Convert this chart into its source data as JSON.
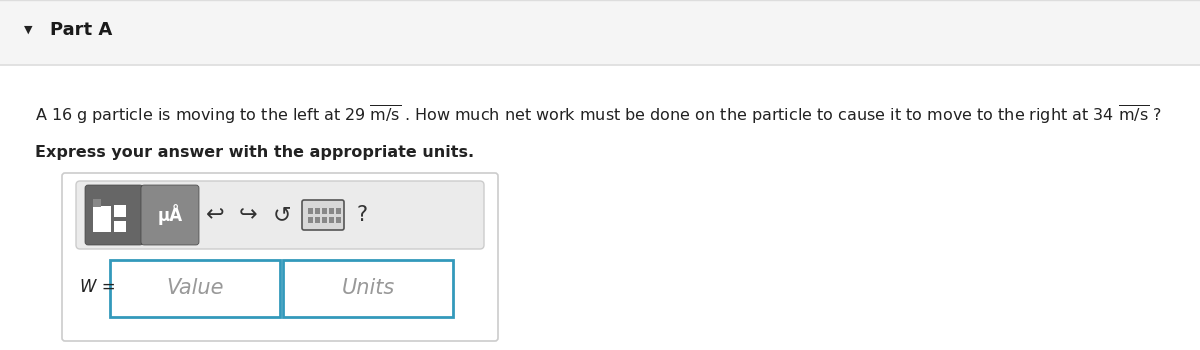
{
  "white_bg": "#ffffff",
  "header_bg": "#f5f5f5",
  "header_border": "#dddddd",
  "header_text": "Part A",
  "header_arrow": "▼",
  "question_line": "A 16 g particle is moving to the left at 29$\\overline{\\rm m/s}$ . How much net work must be done on the particle to cause it to move to the right at 34$\\overline{\\rm m/s}$ ?",
  "express_text": "Express your answer with the appropriate units.",
  "w_label": "W =",
  "value_placeholder": "Value",
  "units_placeholder": "Units",
  "input_border_color": "#3399bb",
  "toolbar_bg": "#ebebeb",
  "toolbar_border": "#cccccc",
  "btn_dark": "#666666",
  "btn_medium": "#888888",
  "icon_color": "#333333",
  "placeholder_color": "#999999",
  "outer_box_border": "#cccccc"
}
